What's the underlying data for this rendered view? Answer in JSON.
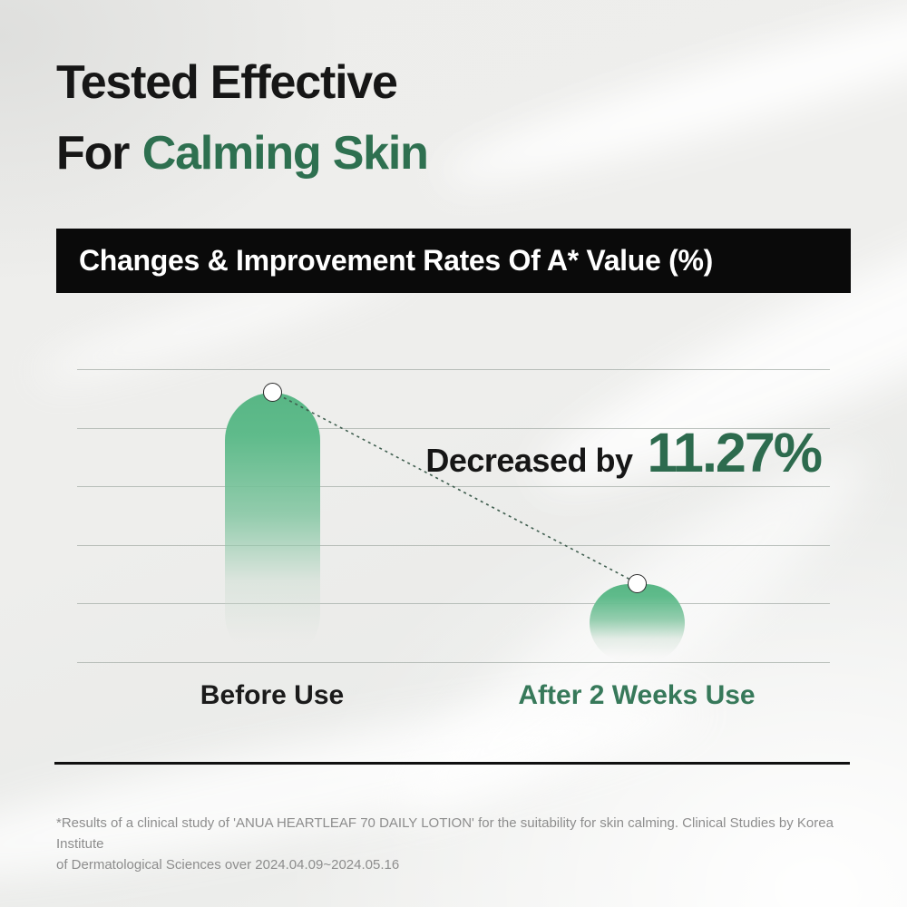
{
  "header": {
    "title_line1": "Tested Effective",
    "title_line2_prefix": "For",
    "title_line2_highlight": "Calming Skin"
  },
  "banner": {
    "label": "Changes & Improvement Rates Of A* Value (%)"
  },
  "chart_data": {
    "type": "bar",
    "title": "Changes & Improvement Rates Of A* Value (%)",
    "categories": [
      "Before Use",
      "After 2 Weeks Use"
    ],
    "series": [
      {
        "name": "A* value (relative bar height, no numeric axis shown)",
        "values": [
          100,
          29
        ]
      }
    ],
    "values_unit": "relative height %; numeric axis labels not displayed",
    "annotation": {
      "prefix": "Decreased by",
      "value": "11.27%"
    },
    "xlabel": "",
    "ylabel": "",
    "gridline_count": 6,
    "grid": "horizontal lines only",
    "legend_position": "none",
    "markers": "white dot on each bar top connected by dashed declining line"
  },
  "footnote": {
    "line1": "*Results of a clinical study of 'ANUA HEARTLEAF 70 DAILY LOTION' for the suitability for skin calming. Clinical Studies by Korea Institute",
    "line2": "of Dermatological Sciences over 2024.04.09~2024.05.16"
  },
  "colors": {
    "accent_green_dark": "#2e7050",
    "accent_green_mid": "#37795a",
    "number_green": "#2d6b4e",
    "bar_green": "#58b685",
    "banner_bg": "#0a0a0a",
    "banner_text": "#ffffff",
    "text_black": "#161616",
    "footnote_gray": "#8d8d8d",
    "gridline": "#a6ada8"
  }
}
